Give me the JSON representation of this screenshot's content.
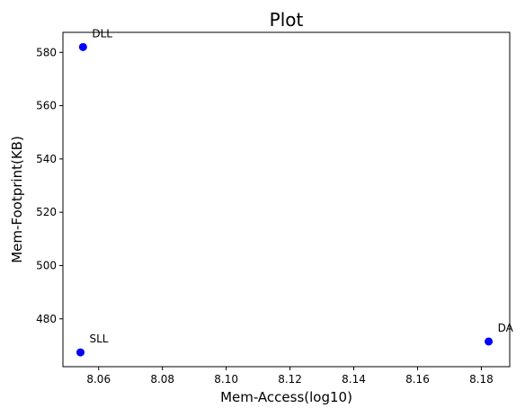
{
  "chart_data": {
    "type": "scatter",
    "title": "Plot",
    "xlabel": "Mem-Access(log10)",
    "ylabel": "Mem-Footprint(KB)",
    "xlim": [
      8.0488,
      8.1889
    ],
    "ylim": [
      462.04,
      587.52
    ],
    "xticks": [
      8.06,
      8.08,
      8.1,
      8.12,
      8.14,
      8.16,
      8.18
    ],
    "xtick_labels": [
      "8.06",
      "8.08",
      "8.10",
      "8.12",
      "8.14",
      "8.16",
      "8.18"
    ],
    "yticks": [
      480,
      500,
      520,
      540,
      560,
      580
    ],
    "ytick_labels": [
      "480",
      "500",
      "520",
      "540",
      "560",
      "580"
    ],
    "grid": false,
    "marker_color": "#0000ff",
    "points": [
      {
        "label": "DLL",
        "x": 8.0551,
        "y": 582.0
      },
      {
        "label": "SLL",
        "x": 8.0543,
        "y": 467.4
      },
      {
        "label": "DA",
        "x": 8.1823,
        "y": 471.5
      }
    ]
  }
}
